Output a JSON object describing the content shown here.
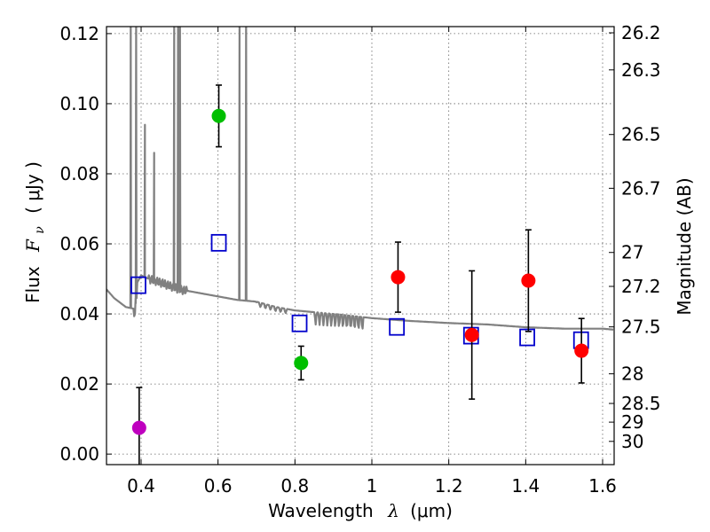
{
  "chart_data": {
    "type": "scatter",
    "xlabel": "Wavelength",
    "xlabel_symbol": "λ",
    "xlabel_unit": "(μm)",
    "ylabel": "Flux",
    "ylabel_symbol": "F",
    "ylabel_subscript": "ν",
    "ylabel_unit": "( μJy )",
    "y2label": "Magnitude (AB)",
    "xlim": [
      0.31,
      1.63
    ],
    "ylim": [
      -0.003,
      0.122
    ],
    "grid": true,
    "xticks": [
      0.4,
      0.6,
      0.8,
      1.0,
      1.2,
      1.4,
      1.6
    ],
    "xtick_labels": [
      "0.4",
      "0.6",
      "0.8",
      "1",
      "1.2",
      "1.4",
      "1.6"
    ],
    "yticks": [
      0.0,
      0.02,
      0.04,
      0.06,
      0.08,
      0.1,
      0.12
    ],
    "ytick_labels": [
      "0.00",
      "0.02",
      "0.04",
      "0.06",
      "0.08",
      "0.10",
      "0.12"
    ],
    "y2ticks": [
      {
        "label": "26.2",
        "mag": 26.2
      },
      {
        "label": "26.3",
        "mag": 26.3
      },
      {
        "label": "26.5",
        "mag": 26.5
      },
      {
        "label": "26.7",
        "mag": 26.7
      },
      {
        "label": "27",
        "mag": 27.0
      },
      {
        "label": "27.2",
        "mag": 27.2
      },
      {
        "label": "27.5",
        "mag": 27.5
      },
      {
        "label": "28",
        "mag": 28.0
      },
      {
        "label": "28.5",
        "mag": 28.5
      },
      {
        "label": "29",
        "mag": 29.0
      },
      {
        "label": "30",
        "mag": 30.0
      }
    ],
    "observed": [
      {
        "x": 0.395,
        "y": 0.0075,
        "err": 0.0115,
        "color": "#bf00bf"
      },
      {
        "x": 0.602,
        "y": 0.0965,
        "err": 0.0088,
        "color": "#00bf00"
      },
      {
        "x": 0.816,
        "y": 0.026,
        "err": 0.0048,
        "color": "#00bf00"
      },
      {
        "x": 1.068,
        "y": 0.0505,
        "err": 0.01,
        "color": "#ff0000"
      },
      {
        "x": 1.26,
        "y": 0.034,
        "err": 0.0183,
        "color": "#ff0000"
      },
      {
        "x": 1.407,
        "y": 0.0495,
        "err": 0.0145,
        "color": "#ff0000"
      },
      {
        "x": 1.545,
        "y": 0.0295,
        "err": 0.0092,
        "color": "#ff0000"
      }
    ],
    "model_photometry": [
      {
        "x": 0.393,
        "y": 0.0482
      },
      {
        "x": 0.602,
        "y": 0.0603
      },
      {
        "x": 0.812,
        "y": 0.0373
      },
      {
        "x": 1.065,
        "y": 0.0363
      },
      {
        "x": 1.258,
        "y": 0.0338
      },
      {
        "x": 1.404,
        "y": 0.0333
      },
      {
        "x": 1.544,
        "y": 0.0325
      }
    ],
    "sed_continuum": [
      [
        0.31,
        0.047
      ],
      [
        0.33,
        0.0445
      ],
      [
        0.36,
        0.042
      ],
      [
        0.38,
        0.0415
      ],
      [
        0.381,
        0.039
      ],
      [
        0.384,
        0.04
      ],
      [
        0.39,
        0.049
      ],
      [
        0.4,
        0.051
      ],
      [
        0.42,
        0.05
      ],
      [
        0.45,
        0.049
      ],
      [
        0.5,
        0.047
      ],
      [
        0.55,
        0.046
      ],
      [
        0.6,
        0.045
      ],
      [
        0.65,
        0.044
      ],
      [
        0.7,
        0.0435
      ],
      [
        0.75,
        0.042
      ],
      [
        0.8,
        0.041
      ],
      [
        0.85,
        0.0405
      ],
      [
        0.9,
        0.04
      ],
      [
        1.0,
        0.0388
      ],
      [
        1.1,
        0.038
      ],
      [
        1.2,
        0.0374
      ],
      [
        1.3,
        0.037
      ],
      [
        1.4,
        0.0362
      ],
      [
        1.5,
        0.0358
      ],
      [
        1.6,
        0.0358
      ],
      [
        1.63,
        0.0355
      ]
    ],
    "sed_emission_lines": [
      {
        "x": 0.373,
        "peak": 0.125
      },
      {
        "x": 0.387,
        "peak": 0.125
      },
      {
        "x": 0.41,
        "peak": 0.094
      },
      {
        "x": 0.434,
        "peak": 0.086
      },
      {
        "x": 0.486,
        "peak": 0.125
      },
      {
        "x": 0.496,
        "peak": 0.125
      },
      {
        "x": 0.501,
        "peak": 0.125
      },
      {
        "x": 0.656,
        "peak": 0.125
      },
      {
        "x": 0.673,
        "peak": 0.125
      }
    ],
    "colors": {
      "model_line": "#808080",
      "model_box": "#0000cc",
      "errorbar": "#000000",
      "grid": "#666666"
    }
  }
}
